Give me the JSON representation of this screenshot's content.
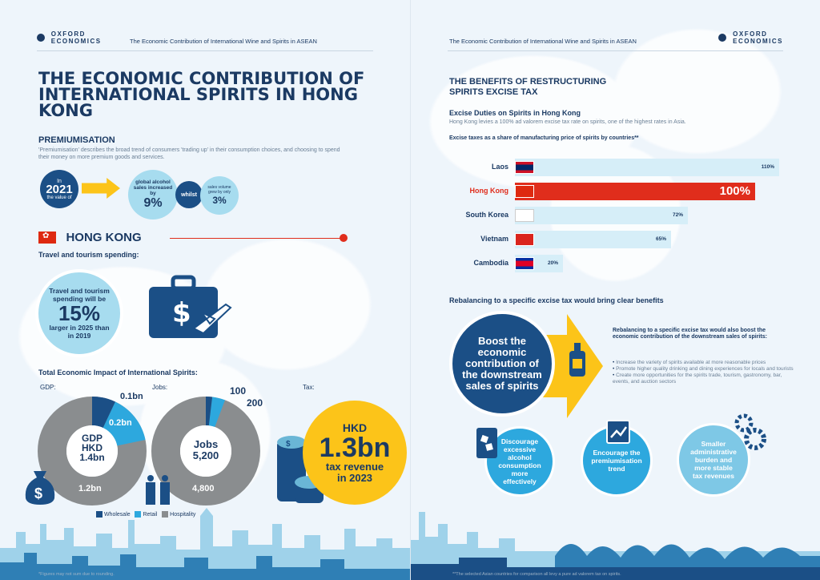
{
  "brand": {
    "logo_line1": "OXFORD",
    "logo_line2": "ECONOMICS",
    "header_title": "The Economic Contribution of International Wine and Spirits in ASEAN"
  },
  "left": {
    "title": "THE ECONOMIC CONTRIBUTION OF INTERNATIONAL SPIRITS IN HONG KONG",
    "premium": {
      "heading": "PREMIUMISATION",
      "text": "'Premiumisation' describes the broad trend of consumers 'trading up' in their consumption choices, and choosing to spend their money on more premium goods and services.",
      "in": "In",
      "year": "2021",
      "the_value_of": "the value of",
      "global_sales": "global alcohol sales increased by",
      "global_pct": "9%",
      "whilst": "whilst",
      "volume_text": "sales volume grew by only",
      "volume_pct": "3%"
    },
    "hk_heading": "HONG KONG",
    "travel_heading": "Travel and tourism spending:",
    "travel_bubble": {
      "line1": "Travel and tourism spending will be",
      "pct": "15%",
      "line2": "larger in 2025 than in 2019"
    },
    "impact_heading": "Total Economic Impact of International Spirits:",
    "gdp_label": "GDP:",
    "jobs_label": "Jobs:",
    "tax_label": "Tax:",
    "gdp": {
      "center1": "GDP",
      "center2": "HKD",
      "center3": "1.4bn",
      "wholesale": "0.1bn",
      "retail": "0.2bn",
      "hospitality": "1.2bn"
    },
    "jobs": {
      "center1": "Jobs",
      "center2": "5,200",
      "wholesale": "100",
      "retail": "200",
      "hospitality": "4,800"
    },
    "tax": {
      "currency": "HKD",
      "amount": "1.3bn",
      "line1": "tax revenue",
      "line2": "in 2023"
    },
    "legend": [
      "Wholesale",
      "Retail",
      "Hospitality"
    ],
    "footnote": "*Figures may not sum due to rounding."
  },
  "right": {
    "title": "THE BENEFITS OF RESTRUCTURING SPIRITS EXCISE TAX",
    "duties_heading": "Excise Duties on Spirits in Hong Kong",
    "duties_text": "Hong Kong levies a 100% ad valorem excise tax rate on spirits, one of the highest rates in Asia.",
    "chart_heading": "Excise taxes as a share of manufacturing price of spirits by countries**",
    "rebalance_heading": "Rebalancing to a specific excise tax would bring clear benefits",
    "boost": "Boost the economic contribution of the downstream sales of spirits",
    "rebalance_text": "Rebalancing to a specific excise tax would also boost the economic contribution of the downstream sales of spirits:",
    "bullets": [
      "Increase the variety of spirits available at more reasonable prices",
      "Promote higher quality drinking and dining experiences for locals and tourists",
      "Create more opportunities for the spirits trade, tourism, gastronomy, bar, events, and auction sectors"
    ],
    "benefit1": "Discourage excessive alcohol consumption more effectively",
    "benefit2": "Encourage the premiumisation trend",
    "benefit3": "Smaller administrative burden and more stable tax revenues",
    "footnote": "**The selected Asian countries for comparison all levy a pure ad valorem tax on spirits."
  },
  "chart_data": {
    "type": "bar",
    "title": "Excise taxes as a share of manufacturing price of spirits by countries**",
    "categories": [
      "Laos",
      "Hong Kong",
      "South Korea",
      "Vietnam",
      "Cambodia"
    ],
    "values": [
      110,
      100,
      72,
      65,
      20
    ],
    "labels": [
      "110%",
      "100%",
      "72%",
      "65%",
      "20%"
    ],
    "highlight": "Hong Kong",
    "colors": {
      "bar": "#d6eef8",
      "highlight": "#e02d1c"
    }
  },
  "colors": {
    "navy": "#1b3a63",
    "wholesale": "#1b4f86",
    "retail": "#2da8de",
    "hospitality": "#8a8d8f",
    "accent": "#fcc419",
    "red": "#e02d1c"
  }
}
